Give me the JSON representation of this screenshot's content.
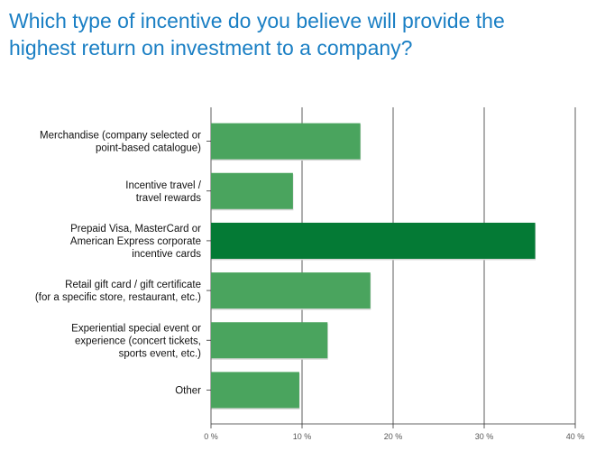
{
  "chart_data": {
    "type": "bar",
    "orientation": "horizontal",
    "title_lines": [
      "Which type of incentive do you believe will provide the",
      "highest return on investment to a company?"
    ],
    "categories": [
      [
        "Merchandise (company selected or",
        "point-based catalogue)"
      ],
      [
        "Incentive travel /",
        "travel rewards"
      ],
      [
        "Prepaid Visa, MasterCard or",
        "American Express corporate",
        "incentive cards"
      ],
      [
        "Retail gift card / gift certificate",
        "(for a specific store, restaurant, etc.)"
      ],
      [
        "Experiential special event or",
        "experience (concert tickets,",
        "sports event, etc.)"
      ],
      [
        "Other"
      ]
    ],
    "values": [
      16.4,
      9.0,
      35.6,
      17.5,
      12.8,
      9.7
    ],
    "highlight_index": 2,
    "xlim": [
      0,
      40
    ],
    "ticks": [
      0,
      10,
      20,
      30,
      40
    ],
    "tick_labels": [
      "0 %",
      "10 %",
      "20 %",
      "30 %",
      "40 %"
    ],
    "grid": true,
    "colors": {
      "bar": "#4aa45e",
      "highlight": "#047a35",
      "grid": "#333333",
      "title": "#1a7fc4"
    }
  }
}
